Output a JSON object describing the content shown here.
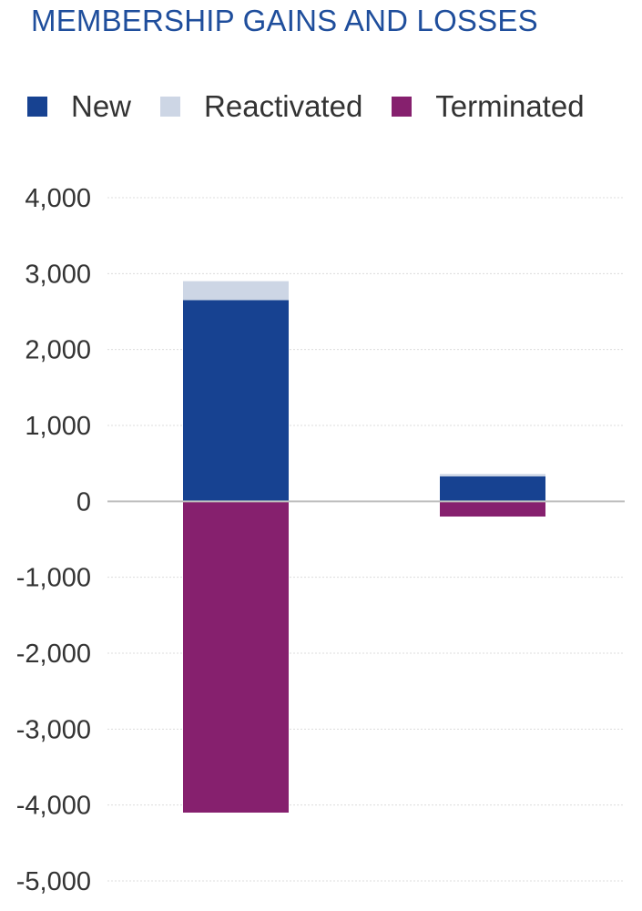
{
  "chart_data": {
    "type": "bar",
    "stacked": true,
    "title": "MEMBERSHIP GAINS AND LOSSES",
    "xlabel": "",
    "ylabel": "",
    "categories": [
      "",
      ""
    ],
    "ylim": [
      -5000,
      4000
    ],
    "yticks": [
      4000,
      3000,
      2000,
      1000,
      0,
      -1000,
      -2000,
      -3000,
      -4000,
      -5000
    ],
    "ytick_labels": [
      "4,000",
      "3,000",
      "2,000",
      "1,000",
      "0",
      "-1,000",
      "-2,000",
      "-3,000",
      "-4,000",
      "-5,000"
    ],
    "grid": true,
    "legend_position": "top",
    "series": [
      {
        "name": "New",
        "color": "#174291",
        "values": [
          2650,
          330
        ]
      },
      {
        "name": "Reactivated",
        "color": "#cdd6e5",
        "values": [
          250,
          30
        ]
      },
      {
        "name": "Terminated",
        "color": "#86206e",
        "values": [
          -4100,
          -200
        ]
      }
    ]
  }
}
